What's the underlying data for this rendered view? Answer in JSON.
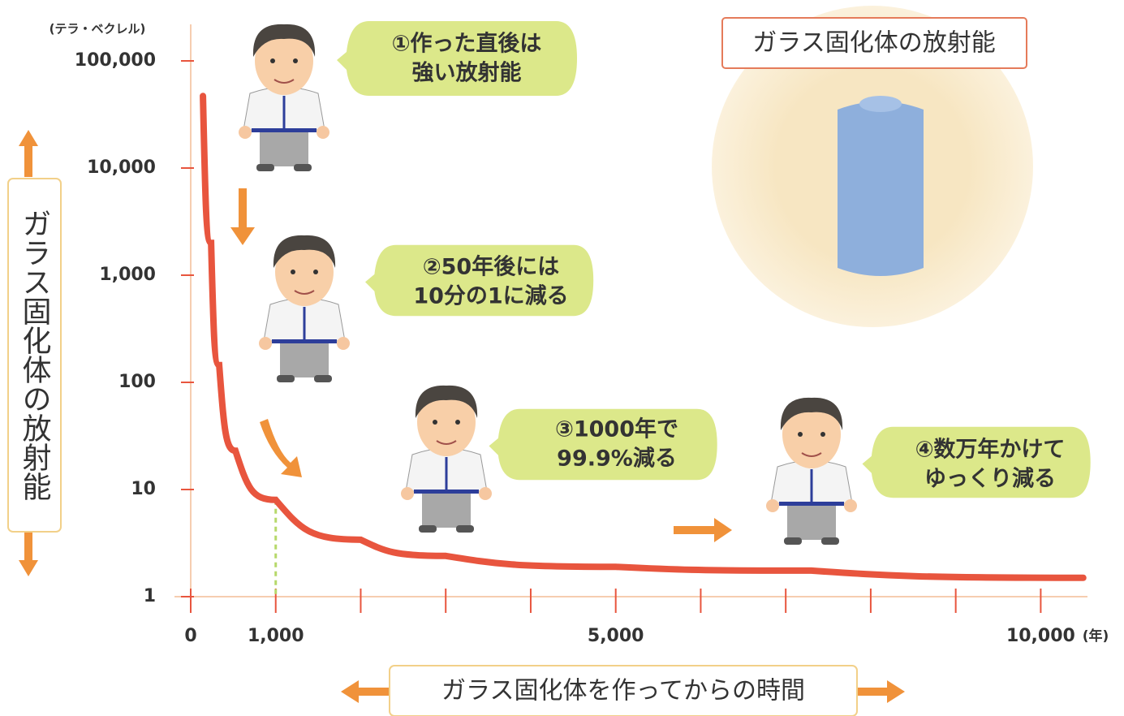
{
  "chart_data": {
    "type": "line",
    "y_unit": "(テラ・ベクレル)",
    "x_unit": "(年)",
    "ylabel": "ガラス固化体の放射能",
    "xlabel": "ガラス固化体を作ってからの時間",
    "box_title": "ガラス固化体の放射能",
    "log_y": true,
    "ylim": [
      1,
      100000
    ],
    "yticks": [
      1,
      10,
      100,
      {
        "value": 1000,
        "label": "1,000"
      },
      {
        "value": 10000,
        "label": "10,000"
      },
      {
        "value": 100000,
        "label": "100,000"
      }
    ],
    "xlim": [
      0,
      10550
    ],
    "xticks": [
      0,
      {
        "value": 1000,
        "label": "1,000"
      },
      {
        "value": 5000,
        "label": "5,000"
      },
      {
        "value": 10000,
        "label": "10,000"
      }
    ],
    "x_minor_ticks": [
      2000,
      3000,
      4000,
      6000,
      7000,
      8000,
      9000
    ],
    "x": [
      144,
      240,
      335,
      526,
      1000,
      2000,
      3000,
      5000,
      7300,
      10500
    ],
    "series": [
      {
        "color": "#e8553e",
        "values": [
          47000,
          2000,
          145,
          23,
          8,
          3.4,
          2.4,
          1.9,
          1.75,
          1.5
        ]
      }
    ],
    "callouts": [
      {
        "lines": [
          "①作った直後は",
          "強い放射能"
        ]
      },
      {
        "lines": [
          "②50年後には",
          "10分の1に減る"
        ]
      },
      {
        "lines": [
          "③1000年で",
          "99.9%減る"
        ]
      },
      {
        "lines": [
          "④数万年かけて",
          "ゆっくり減る"
        ]
      }
    ]
  }
}
